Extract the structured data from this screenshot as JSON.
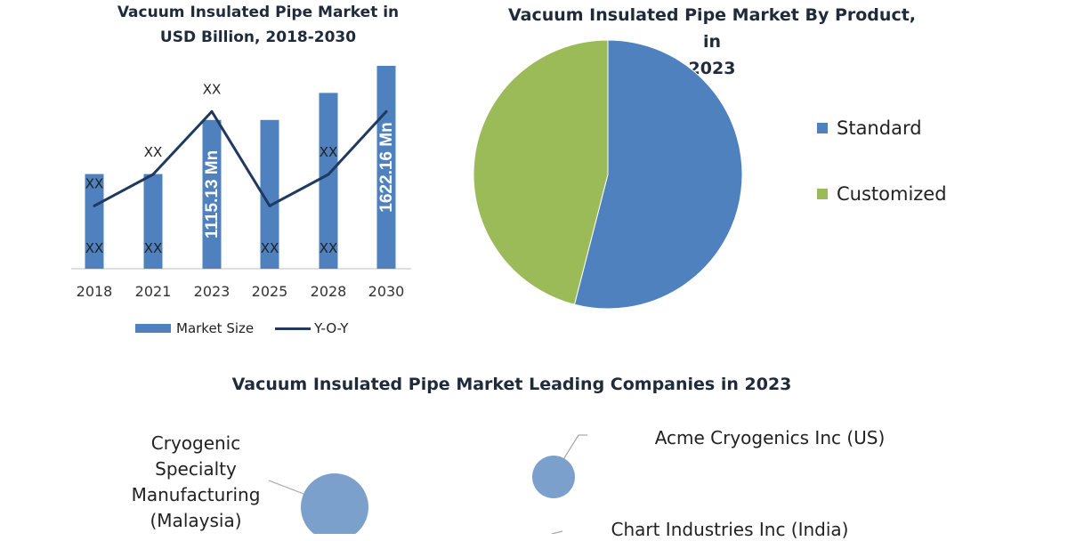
{
  "chart_data": [
    {
      "type": "bar",
      "title": "Vacuum Insulated Pipe Market in USD Billion, 2018-2030",
      "title_lines": [
        "Vacuum Insulated Pipe Market in",
        "USD Billion, 2018-2030"
      ],
      "categories": [
        "2018",
        "2021",
        "2023",
        "2025",
        "2028",
        "2030"
      ],
      "series": [
        {
          "name": "Market Size",
          "type": "bar",
          "values": [
            35,
            35,
            55,
            55,
            65,
            75
          ],
          "color": "#4e81bd"
        },
        {
          "name": "Y-O-Y",
          "type": "line",
          "values": [
            2,
            3,
            5,
            2,
            3,
            5
          ],
          "color": "#1f3a5f"
        }
      ],
      "bar_labels": [
        "XX",
        "XX",
        "1115.13 Mn",
        "XX",
        "XX",
        "1622.16 Mn"
      ],
      "line_labels": [
        "XX",
        "XX",
        "XX",
        "",
        "XX",
        ""
      ],
      "legend_position": "bottom",
      "grid": false
    },
    {
      "type": "pie",
      "title": "Vacuum Insulated Pipe Market By Product, in 2023",
      "title_lines": [
        "Vacuum Insulated Pipe Market By Product, in",
        "2023"
      ],
      "labels": [
        "Standard",
        "Customized"
      ],
      "values": [
        54,
        46
      ],
      "colors": [
        "#4e81bd",
        "#9bbb59"
      ],
      "legend_position": "right"
    },
    {
      "type": "scatter",
      "title": "Vacuum Insulated Pipe Market Leading Companies in 2023",
      "points": [
        {
          "label": "Cryogenic Specialty Manufacturing (Malaysia)",
          "label_lines": [
            "Cryogenic",
            "Specialty",
            "Manufacturing",
            "(Malaysia)"
          ]
        },
        {
          "label": "Acme Cryogenics Inc (US)",
          "label_lines": [
            "Acme Cryogenics Inc (US)"
          ]
        },
        {
          "label": "Chart Industries Inc (India)",
          "label_lines": [
            "Chart Industries Inc (India)"
          ]
        }
      ],
      "bubble_color": "#7ba0cc"
    }
  ]
}
